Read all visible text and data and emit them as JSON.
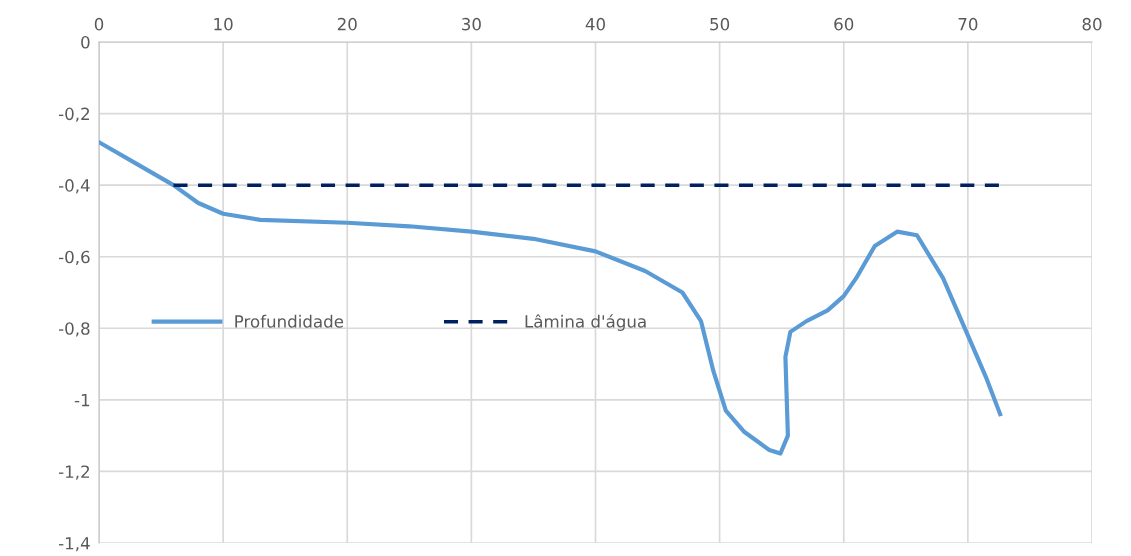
{
  "chart_data": {
    "type": "line",
    "series": [
      {
        "name": "Profundidade",
        "color": "#5b9bd5",
        "line_style": "solid",
        "x": [
          0,
          3,
          6,
          8,
          10,
          13,
          20,
          25,
          30,
          35,
          40,
          44,
          47,
          48.5,
          49.5,
          50.5,
          52,
          54,
          54.9,
          55.5,
          55.3,
          55.7,
          57,
          58.7,
          60,
          61,
          62.5,
          64.3,
          65.9,
          68,
          70,
          71.5,
          72.6
        ],
        "values": [
          -0.28,
          -0.34,
          -0.4,
          -0.45,
          -0.48,
          -0.497,
          -0.505,
          -0.515,
          -0.53,
          -0.55,
          -0.585,
          -0.64,
          -0.7,
          -0.78,
          -0.92,
          -1.03,
          -1.09,
          -1.14,
          -1.15,
          -1.1,
          -0.88,
          -0.81,
          -0.78,
          -0.75,
          -0.71,
          -0.66,
          -0.57,
          -0.53,
          -0.54,
          -0.66,
          -0.82,
          -0.94,
          -1.04
        ]
      },
      {
        "name": "Lâmina d'água",
        "color": "#002060",
        "line_style": "dashed",
        "x": [
          6,
          72.5
        ],
        "values": [
          -0.4,
          -0.4
        ]
      }
    ],
    "xlim": [
      0,
      80
    ],
    "xticks": [
      0,
      10,
      20,
      30,
      40,
      50,
      60,
      70,
      80
    ],
    "ylim": [
      -1.4,
      0
    ],
    "yticks": [
      {
        "value": 0,
        "label": "0"
      },
      {
        "value": -0.2,
        "label": "-0,2"
      },
      {
        "value": -0.4,
        "label": "-0,4"
      },
      {
        "value": -0.6,
        "label": "-0,6"
      },
      {
        "value": -0.8,
        "label": "-0,8"
      },
      {
        "value": -1,
        "label": "-1"
      },
      {
        "value": -1.2,
        "label": "-1,2"
      },
      {
        "value": -1.4,
        "label": "-1,4"
      }
    ],
    "grid": true,
    "legend": "center left",
    "marker": "none"
  }
}
